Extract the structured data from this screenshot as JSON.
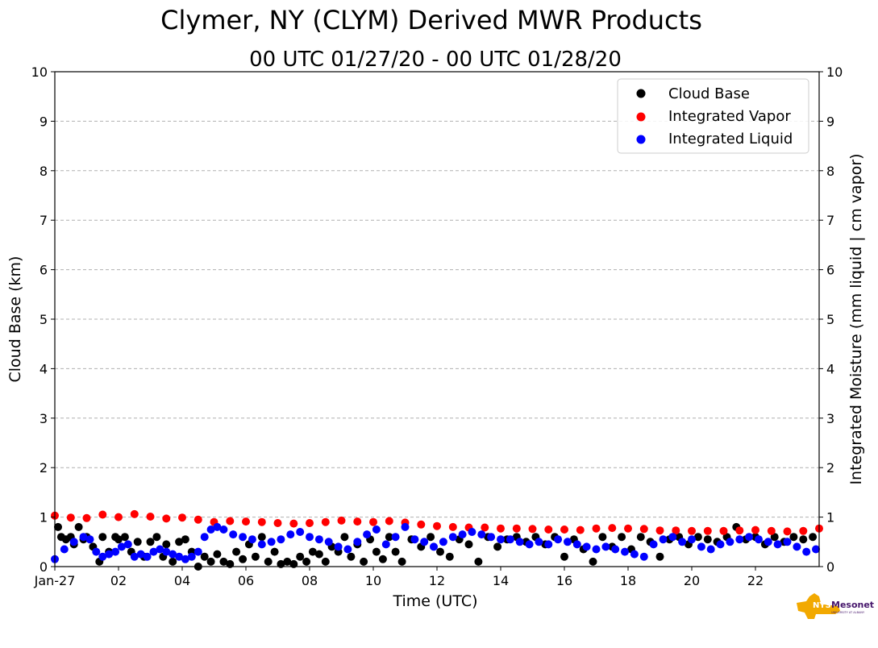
{
  "chart_data": {
    "type": "scatter",
    "title": "Clymer, NY (CLYM) Derived MWR Products",
    "subtitle": "00 UTC 01/27/20 - 00 UTC 01/28/20",
    "xlabel": "Time (UTC)",
    "ylabel_left": "Cloud Base (km)",
    "ylabel_right": "Integrated Moisture (mm liquid | cm vapor)",
    "xlim": [
      0,
      24
    ],
    "ylim": [
      0,
      10
    ],
    "x_ticks": [
      0,
      2,
      4,
      6,
      8,
      10,
      12,
      14,
      16,
      18,
      20,
      22
    ],
    "x_tick_labels": [
      "Jan-27",
      "02",
      "04",
      "06",
      "08",
      "10",
      "12",
      "14",
      "16",
      "18",
      "20",
      "22"
    ],
    "y_ticks": [
      0,
      1,
      2,
      3,
      4,
      5,
      6,
      7,
      8,
      9,
      10
    ],
    "y_tick_labels": [
      "0",
      "1",
      "2",
      "3",
      "4",
      "5",
      "6",
      "7",
      "8",
      "9",
      "10"
    ],
    "grid": "horizontal dashed",
    "legend_position": "top-right",
    "series": [
      {
        "name": "Cloud Base",
        "color": "#000000",
        "x": [
          0.1,
          0.2,
          0.35,
          0.5,
          0.6,
          0.75,
          0.9,
          1.0,
          1.2,
          1.4,
          1.5,
          1.7,
          1.9,
          2.0,
          2.2,
          2.4,
          2.6,
          2.8,
          3.0,
          3.2,
          3.4,
          3.5,
          3.7,
          3.9,
          4.1,
          4.3,
          4.5,
          4.7,
          4.9,
          5.1,
          5.3,
          5.5,
          5.7,
          5.9,
          6.1,
          6.3,
          6.5,
          6.7,
          6.9,
          7.1,
          7.3,
          7.5,
          7.7,
          7.9,
          8.1,
          8.3,
          8.5,
          8.7,
          8.9,
          9.1,
          9.3,
          9.5,
          9.7,
          9.9,
          10.1,
          10.3,
          10.5,
          10.7,
          10.9,
          11.2,
          11.5,
          11.8,
          12.1,
          12.4,
          12.7,
          13.0,
          13.3,
          13.6,
          13.9,
          14.2,
          14.5,
          14.8,
          15.1,
          15.4,
          15.7,
          16.0,
          16.3,
          16.6,
          16.9,
          17.2,
          17.5,
          17.8,
          18.1,
          18.4,
          18.7,
          19.0,
          19.3,
          19.6,
          19.9,
          20.2,
          20.5,
          20.8,
          21.1,
          21.4,
          21.7,
          22.0,
          22.3,
          22.6,
          22.9,
          23.2,
          23.5,
          23.8
        ],
        "values": [
          0.8,
          0.6,
          0.55,
          0.6,
          0.45,
          0.8,
          0.55,
          0.6,
          0.4,
          0.1,
          0.6,
          0.3,
          0.6,
          0.55,
          0.6,
          0.3,
          0.5,
          0.2,
          0.5,
          0.6,
          0.2,
          0.45,
          0.1,
          0.5,
          0.55,
          0.3,
          0.0,
          0.2,
          0.1,
          0.25,
          0.1,
          0.05,
          0.3,
          0.15,
          0.45,
          0.2,
          0.6,
          0.1,
          0.3,
          0.05,
          0.1,
          0.05,
          0.2,
          0.1,
          0.3,
          0.25,
          0.1,
          0.4,
          0.3,
          0.6,
          0.2,
          0.45,
          0.1,
          0.55,
          0.3,
          0.15,
          0.6,
          0.3,
          0.1,
          0.55,
          0.4,
          0.6,
          0.3,
          0.2,
          0.55,
          0.45,
          0.1,
          0.6,
          0.4,
          0.55,
          0.6,
          0.5,
          0.6,
          0.45,
          0.6,
          0.2,
          0.55,
          0.35,
          0.1,
          0.6,
          0.4,
          0.6,
          0.35,
          0.6,
          0.5,
          0.2,
          0.55,
          0.6,
          0.45,
          0.6,
          0.55,
          0.5,
          0.6,
          0.8,
          0.55,
          0.6,
          0.45,
          0.6,
          0.5,
          0.6,
          0.55,
          0.6
        ]
      },
      {
        "name": "Integrated Vapor",
        "color": "#ff0000",
        "x": [
          0,
          0.5,
          1,
          1.5,
          2,
          2.5,
          3,
          3.5,
          4,
          4.5,
          5,
          5.5,
          6,
          6.5,
          7,
          7.5,
          8,
          8.5,
          9,
          9.5,
          10,
          10.5,
          11,
          11.5,
          12,
          12.5,
          13,
          13.5,
          14,
          14.5,
          15,
          15.5,
          16,
          16.5,
          17,
          17.5,
          18,
          18.5,
          19,
          19.5,
          20,
          20.5,
          21,
          21.5,
          22,
          22.5,
          23,
          23.5,
          24
        ],
        "values": [
          1.03,
          0.99,
          0.98,
          1.05,
          1.0,
          1.06,
          1.01,
          0.97,
          0.99,
          0.95,
          0.9,
          0.92,
          0.91,
          0.9,
          0.88,
          0.87,
          0.88,
          0.9,
          0.93,
          0.91,
          0.9,
          0.92,
          0.89,
          0.85,
          0.82,
          0.8,
          0.79,
          0.79,
          0.77,
          0.77,
          0.76,
          0.75,
          0.75,
          0.74,
          0.77,
          0.78,
          0.77,
          0.76,
          0.73,
          0.73,
          0.72,
          0.72,
          0.72,
          0.73,
          0.74,
          0.72,
          0.71,
          0.72,
          0.77
        ]
      },
      {
        "name": "Integrated Liquid",
        "color": "#0000ff",
        "x": [
          0,
          0.3,
          0.6,
          0.9,
          1.1,
          1.3,
          1.5,
          1.7,
          1.9,
          2.1,
          2.3,
          2.5,
          2.7,
          2.9,
          3.1,
          3.3,
          3.5,
          3.7,
          3.9,
          4.1,
          4.3,
          4.5,
          4.7,
          4.9,
          5.1,
          5.3,
          5.6,
          5.9,
          6.2,
          6.5,
          6.8,
          7.1,
          7.4,
          7.7,
          8.0,
          8.3,
          8.6,
          8.9,
          9.2,
          9.5,
          9.8,
          10.1,
          10.4,
          10.7,
          11.0,
          11.3,
          11.6,
          11.9,
          12.2,
          12.5,
          12.8,
          13.1,
          13.4,
          13.7,
          14.0,
          14.3,
          14.6,
          14.9,
          15.2,
          15.5,
          15.8,
          16.1,
          16.4,
          16.7,
          17.0,
          17.3,
          17.6,
          17.9,
          18.2,
          18.5,
          18.8,
          19.1,
          19.4,
          19.7,
          20.0,
          20.3,
          20.6,
          20.9,
          21.2,
          21.5,
          21.8,
          22.1,
          22.4,
          22.7,
          23.0,
          23.3,
          23.6,
          23.9
        ],
        "values": [
          0.15,
          0.35,
          0.5,
          0.6,
          0.55,
          0.3,
          0.2,
          0.25,
          0.3,
          0.4,
          0.45,
          0.2,
          0.25,
          0.2,
          0.3,
          0.35,
          0.3,
          0.25,
          0.2,
          0.15,
          0.2,
          0.3,
          0.6,
          0.75,
          0.8,
          0.75,
          0.65,
          0.6,
          0.55,
          0.45,
          0.5,
          0.55,
          0.65,
          0.7,
          0.6,
          0.55,
          0.5,
          0.4,
          0.35,
          0.5,
          0.65,
          0.75,
          0.45,
          0.6,
          0.8,
          0.55,
          0.5,
          0.4,
          0.5,
          0.6,
          0.65,
          0.7,
          0.65,
          0.6,
          0.55,
          0.55,
          0.5,
          0.45,
          0.5,
          0.45,
          0.55,
          0.5,
          0.45,
          0.4,
          0.35,
          0.4,
          0.35,
          0.3,
          0.25,
          0.2,
          0.45,
          0.55,
          0.6,
          0.5,
          0.55,
          0.4,
          0.35,
          0.45,
          0.5,
          0.55,
          0.6,
          0.55,
          0.5,
          0.45,
          0.5,
          0.4,
          0.3,
          0.35
        ]
      }
    ]
  },
  "logo": {
    "text": "NYS Mesonet",
    "subtext": "UNIVERSITY AT ALBANY",
    "colors": {
      "state": "#f2a900",
      "text": "#46166b"
    }
  }
}
